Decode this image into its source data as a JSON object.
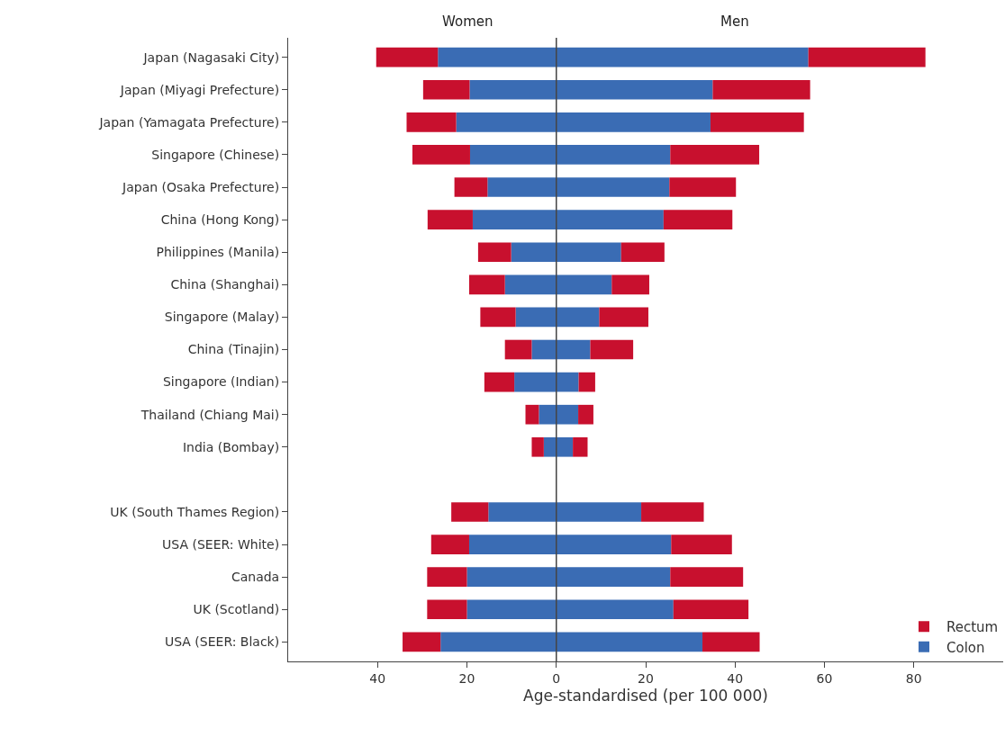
{
  "chart_data": {
    "type": "bar",
    "orientation": "horizontal",
    "stacked": true,
    "xlabel": "Age-standardised (per 100 000)",
    "annotations": [
      "Women",
      "Men"
    ],
    "categories": [
      "Japan (Nagasaki City)",
      "Japan (Miyagi Prefecture)",
      "Japan (Yamagata Prefecture)",
      "Singapore (Chinese)",
      "Japan (Osaka Prefecture)",
      "China (Hong Kong)",
      "Philippines (Manila)",
      "China (Shanghai)",
      "Singapore (Malay)",
      "China (Tinajin)",
      "Singapore (Indian)",
      "Thailand (Chiang Mai)",
      "India (Bombay)",
      null,
      "UK (South Thames Region)",
      "USA (SEER: White)",
      "Canada",
      "UK (Scotland)",
      "USA (SEER: Black)"
    ],
    "series": [
      {
        "name": "Colon",
        "color": "#3a6cb4",
        "values": [
          -26.5,
          -19.4,
          -22.4,
          -19.3,
          -15.4,
          -18.7,
          -10.1,
          -11.5,
          -9.1,
          -5.5,
          -9.4,
          -3.9,
          -2.8,
          null,
          -15.2,
          -19.5,
          -20,
          -20,
          -25.9
        ]
      },
      {
        "color": "#3a6cb4",
        "values": [
          56.4,
          35,
          34.5,
          25.5,
          25.3,
          24,
          14.5,
          12.4,
          9.6,
          7.6,
          5,
          4.9,
          3.7,
          null,
          19,
          25.7,
          25.5,
          26.2,
          32.7
        ]
      },
      {
        "name": "Rectum",
        "color": "#c8102e",
        "values": [
          -13.8,
          -10.4,
          -11.1,
          -12.9,
          -7.4,
          -10.1,
          -7.4,
          -8,
          -7.9,
          -6,
          -6.7,
          -3,
          -2.7,
          null,
          -8.3,
          -8.5,
          -8.9,
          -8.9,
          -8.5
        ]
      },
      {
        "color": "#c8102e",
        "values": [
          26.2,
          21.8,
          20.9,
          19.9,
          14.9,
          15.4,
          9.7,
          8.4,
          11,
          9.6,
          3.7,
          3.4,
          3.3,
          null,
          14,
          13.6,
          16.3,
          16.8,
          12.8
        ]
      }
    ],
    "xlim": [
      -60,
      100
    ],
    "xticks": [
      {
        "value": -40,
        "label": "40"
      },
      {
        "value": -20,
        "label": "20"
      },
      0,
      20,
      40,
      60,
      80
    ],
    "ref_lines": [
      {
        "axis": "x",
        "value": 0,
        "color": "#444444"
      }
    ],
    "legend": "bottom right"
  }
}
